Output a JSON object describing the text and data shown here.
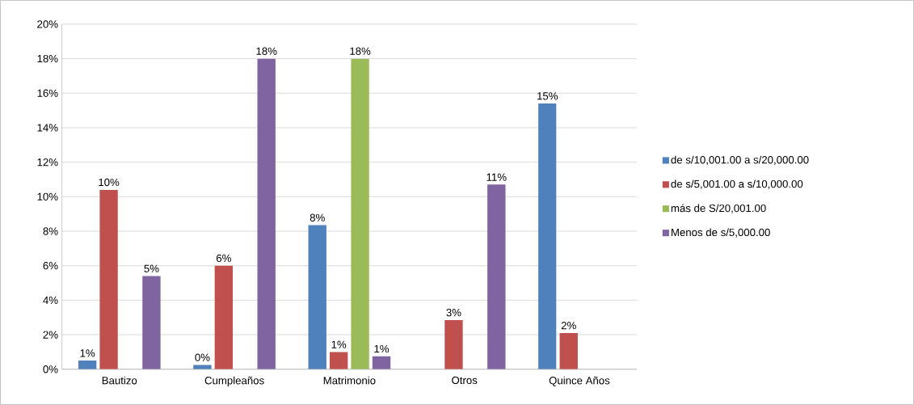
{
  "chart_data": {
    "type": "bar",
    "categories": [
      "Bautizo",
      "Cumpleaños",
      "Matrimonio",
      "Otros",
      "Quince Años"
    ],
    "series": [
      {
        "name": "de s/10,001.00 a s/20,000.00",
        "color": "#4f81bd",
        "values": [
          0.5,
          0.25,
          8.35,
          null,
          15.4
        ],
        "value_labels": [
          "1%",
          "0%",
          "8%",
          null,
          "15%"
        ]
      },
      {
        "name": "de s/5,001.00 a s/10,000.00",
        "color": "#c0504d",
        "values": [
          10.4,
          6.0,
          1.0,
          2.85,
          2.1
        ],
        "value_labels": [
          "10%",
          "6%",
          "1%",
          "3%",
          "2%"
        ]
      },
      {
        "name": "más de S/20,001.00",
        "color": "#9bbb59",
        "values": [
          null,
          null,
          18.0,
          null,
          null
        ],
        "value_labels": [
          null,
          null,
          "18%",
          null,
          null
        ]
      },
      {
        "name": "Menos de s/5,000.00",
        "color": "#8064a2",
        "values": [
          5.4,
          18.0,
          0.75,
          10.7,
          null
        ],
        "value_labels": [
          "5%",
          "18%",
          "1%",
          "11%",
          null
        ]
      }
    ],
    "ylim": [
      0,
      20
    ],
    "yticks": [
      {
        "value": 0,
        "label": "0%"
      },
      {
        "value": 2,
        "label": "2%"
      },
      {
        "value": 4,
        "label": "4%"
      },
      {
        "value": 6,
        "label": "6%"
      },
      {
        "value": 8,
        "label": "8%"
      },
      {
        "value": 10,
        "label": "10%"
      },
      {
        "value": 12,
        "label": "12%"
      },
      {
        "value": 14,
        "label": "14%"
      },
      {
        "value": 16,
        "label": "16%"
      },
      {
        "value": 18,
        "label": "18%"
      },
      {
        "value": 20,
        "label": "20%"
      }
    ],
    "grid": "y",
    "legend": "right"
  }
}
